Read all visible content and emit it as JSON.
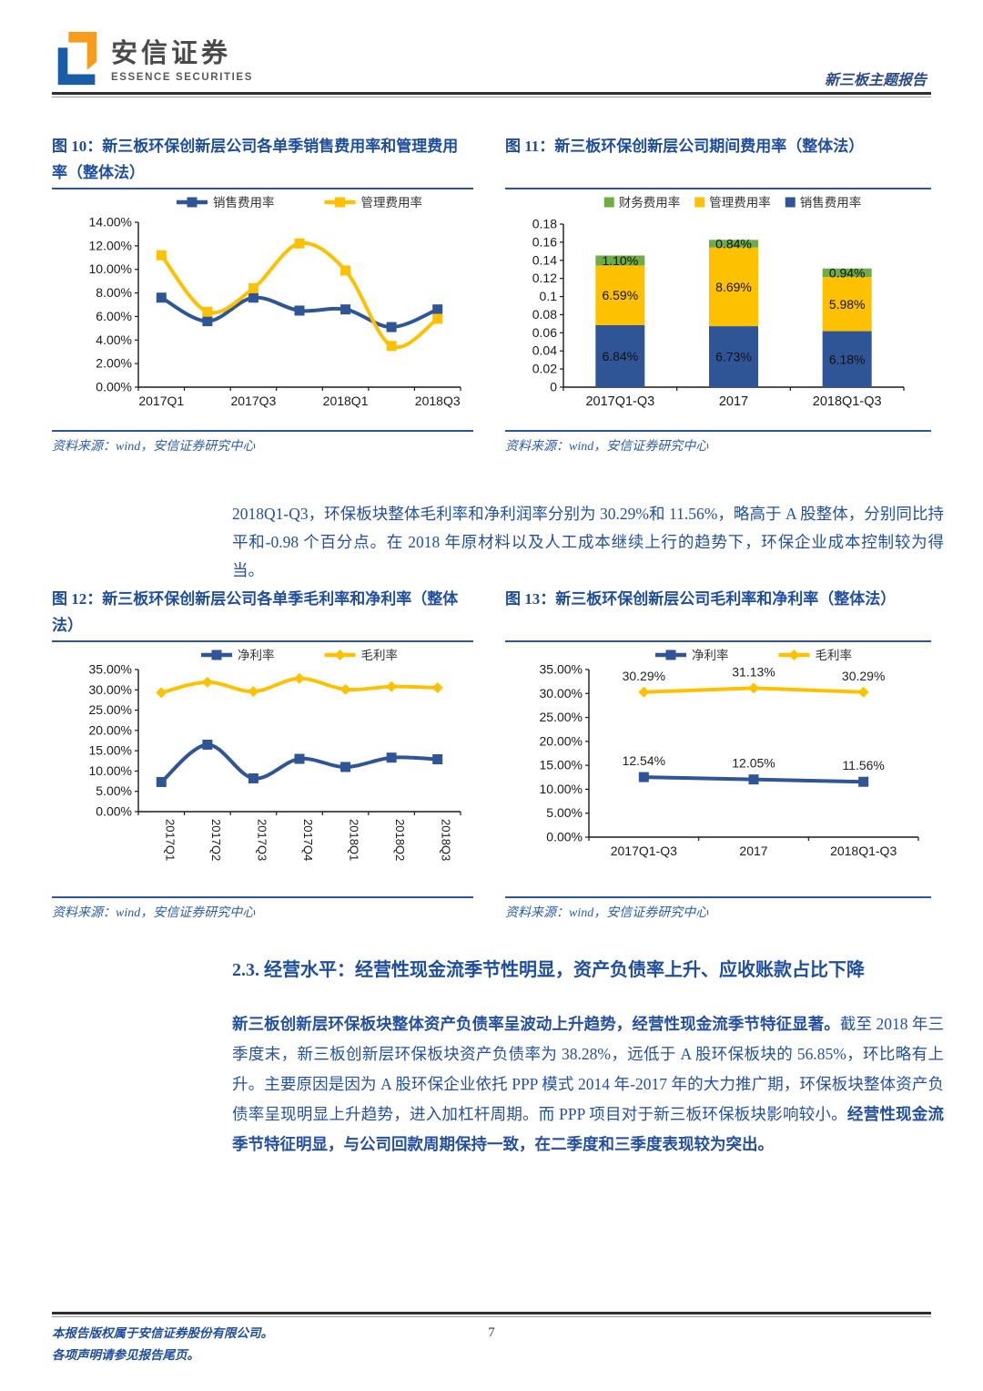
{
  "header": {
    "brand_cn": "安信证券",
    "brand_en": "ESSENCE SECURITIES",
    "report_tag": "新三板主题报告"
  },
  "colors": {
    "title_blue": "#1f4e9c",
    "text_blue": "#24509e",
    "series_blue": "#2f5597",
    "series_yellow": "#fdc101",
    "series_green": "#6fac47",
    "rule_blue": "#2e5596"
  },
  "figures": [
    {
      "title": "图 10：新三板环保创新层公司各单季销售费用率和管理费用率（整体法）",
      "source": "资料来源：wind，安信证券研究中心",
      "chart_data": {
        "type": "line",
        "categories": [
          "2017Q1",
          "2017Q2",
          "2017Q3",
          "2017Q4",
          "2018Q1",
          "2018Q2",
          "2018Q3"
        ],
        "xtick_indices": [
          0,
          2,
          4,
          6
        ],
        "ylim": [
          0,
          14
        ],
        "ystep": 2,
        "yformat": "percent",
        "grid": false,
        "legend_position": "top",
        "series": [
          {
            "name": "销售费用率",
            "color": "#2f5597",
            "marker": "square",
            "values": [
              7.6,
              5.6,
              7.6,
              6.5,
              6.6,
              5.1,
              6.6
            ]
          },
          {
            "name": "管理费用率",
            "color": "#fdc101",
            "marker": "square",
            "values": [
              11.2,
              6.4,
              8.4,
              12.2,
              9.9,
              3.5,
              5.8
            ]
          }
        ]
      }
    },
    {
      "title": "图 11：新三板环保创新层公司期间费用率（整体法）",
      "source": "资料来源：wind，安信证券研究中心",
      "chart_data": {
        "type": "stacked-bar",
        "categories": [
          "2017Q1-Q3",
          "2017",
          "2018Q1-Q3"
        ],
        "ylim": [
          0,
          18
        ],
        "ystep": 2,
        "yformat": "decimal",
        "grid": false,
        "legend_position": "top",
        "legend_reversed": true,
        "bar_labels": true,
        "series": [
          {
            "name": "销售费用率",
            "color": "#2f5597",
            "values": [
              6.84,
              6.73,
              6.18
            ]
          },
          {
            "name": "管理费用率",
            "color": "#fdc101",
            "values": [
              6.59,
              8.69,
              5.98
            ]
          },
          {
            "name": "财务费用率",
            "color": "#6fac47",
            "values": [
              1.1,
              0.84,
              0.94
            ]
          }
        ]
      }
    },
    {
      "title": "图 12：新三板环保创新层公司各单季毛利率和净利率（整体法）",
      "source": "资料来源：wind，安信证券研究中心",
      "chart_data": {
        "type": "line",
        "categories": [
          "2017Q1",
          "2017Q2",
          "2017Q3",
          "2017Q4",
          "2018Q1",
          "2018Q2",
          "2018Q3"
        ],
        "xtick_rotate": 90,
        "ylim": [
          0,
          35
        ],
        "ystep": 5,
        "yformat": "percent",
        "grid": false,
        "legend_position": "top",
        "series": [
          {
            "name": "净利率",
            "color": "#2f5597",
            "marker": "square",
            "values": [
              7.3,
              16.5,
              8.2,
              13.0,
              11.0,
              13.3,
              12.9
            ]
          },
          {
            "name": "毛利率",
            "color": "#fdc101",
            "marker": "diamond",
            "values": [
              29.3,
              31.9,
              29.6,
              32.8,
              30.1,
              30.8,
              30.5
            ]
          }
        ]
      }
    },
    {
      "title": "图 13：新三板环保创新层公司毛利率和净利率（整体法）",
      "source": "资料来源：wind，安信证券研究中心",
      "chart_data": {
        "type": "line",
        "categories": [
          "2017Q1-Q3",
          "2017",
          "2018Q1-Q3"
        ],
        "ylim": [
          0,
          35
        ],
        "ystep": 5,
        "yformat": "percent",
        "grid": false,
        "legend_position": "top",
        "series": [
          {
            "name": "净利率",
            "color": "#2f5597",
            "marker": "square",
            "values": [
              12.54,
              12.05,
              11.56
            ],
            "point_labels": true
          },
          {
            "name": "毛利率",
            "color": "#fdc101",
            "marker": "diamond",
            "values": [
              30.29,
              31.13,
              30.29
            ],
            "point_labels": true
          }
        ]
      }
    }
  ],
  "para1": "2018Q1-Q3，环保板块整体毛利率和净利润率分别为 30.29%和 11.56%，略高于 A 股整体，分别同比持平和-0.98 个百分点。在 2018 年原材料以及人工成本继续上行的趋势下，环保企业成本控制较为得当。",
  "section": {
    "title": "2.3. 经营水平：经营性现金流季节性明显，资产负债率上升、应收账款占比下降"
  },
  "para2": {
    "bold1": "新三板创新层环保板块整体资产负债率呈波动上升趋势，经营性现金流季节特征显著。",
    "normal": "截至 2018 年三季度末，新三板创新层环保板块资产负债率为 38.28%，远低于 A 股环保板块的 56.85%，环比略有上升。主要原因是因为 A 股环保企业依托 PPP 模式 2014 年-2017 年的大力推广期，环保板块整体资产负债率呈现明显上升趋势，进入加杠杆周期。而 PPP 项目对于新三板环保板块影响较小。",
    "bold2": "经营性现金流季节特征明显，与公司回款周期保持一致，在二季度和三季度表现较为突出。"
  },
  "footer": {
    "line1": "本报告版权属于安信证券股份有限公司。",
    "line2": "各项声明请参见报告尾页。",
    "page": "7"
  }
}
